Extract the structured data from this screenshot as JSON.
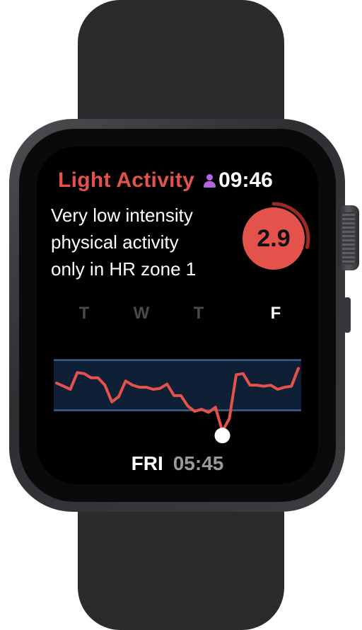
{
  "app": {
    "title": "Light Activity",
    "time": "09:46"
  },
  "description": {
    "line1": "Very low intensity",
    "line2": "physical activity",
    "line3": "only in HR zone 1"
  },
  "score": {
    "value": "2.9",
    "ring_fraction": 0.29,
    "color": "#e4524c"
  },
  "days": [
    {
      "label": "T",
      "active": false
    },
    {
      "label": "W",
      "active": false
    },
    {
      "label": "T",
      "active": false
    },
    {
      "label": "F",
      "active": true
    }
  ],
  "chart_data": {
    "type": "line",
    "series": [
      {
        "values": [
          58,
          55,
          52,
          68,
          67,
          63,
          63,
          56,
          40,
          45,
          60,
          56,
          54,
          54,
          52,
          53,
          57,
          46,
          46,
          36,
          31,
          33,
          30,
          35,
          12,
          24,
          66,
          67,
          56,
          56,
          55,
          56,
          52,
          54,
          55,
          72
        ]
      }
    ],
    "ylim": [
      0,
      100
    ],
    "band": [
      32,
      80
    ],
    "selected_index": 24,
    "line_color": "#e4524c",
    "band_color": "#0f1f36",
    "band_edge_color": "#3b5f8a",
    "marker_color": "#ffffff"
  },
  "footer": {
    "day": "FRI",
    "time": "05:45"
  },
  "colors": {
    "accent": "#e4524c",
    "profile": "#b067e0"
  }
}
